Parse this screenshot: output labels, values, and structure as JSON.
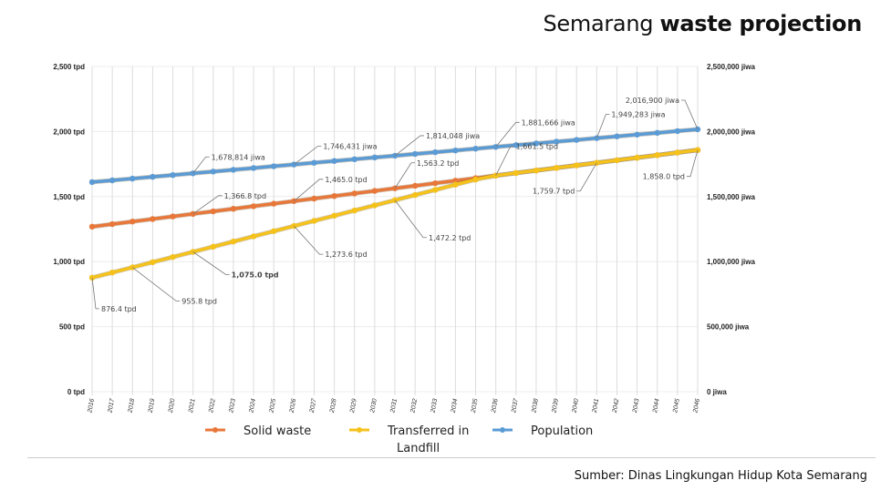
{
  "title": {
    "regular": "Semarang",
    "bold": "waste projection"
  },
  "source": "Sumber: Dinas Lingkungan Hidup Kota Semarang",
  "chart_data": {
    "type": "line",
    "title": "Semarang waste projection",
    "x": [
      2016,
      2017,
      2018,
      2019,
      2020,
      2021,
      2022,
      2023,
      2024,
      2025,
      2026,
      2027,
      2028,
      2029,
      2030,
      2031,
      2032,
      2033,
      2034,
      2035,
      2036,
      2037,
      2038,
      2039,
      2040,
      2041,
      2042,
      2043,
      2044,
      2045,
      2046
    ],
    "y_left": {
      "range": [
        0,
        2500
      ],
      "ticks": [
        "0 tpd",
        "500 tpd",
        "1,000 tpd",
        "1,500 tpd",
        "2,000 tpd",
        "2,500 tpd"
      ]
    },
    "y_right": {
      "range": [
        0,
        2500000
      ],
      "ticks": [
        "0 jiwa",
        "500,000 jiwa",
        "1,000,000 jiwa",
        "1,500,000 jiwa",
        "2,000,000 jiwa",
        "2,500,000 jiwa"
      ]
    },
    "grid": {
      "vertical": true,
      "horizontal": true
    },
    "legend_position": "bottom",
    "series": [
      {
        "name": "Solid waste",
        "axis": "left",
        "color": "#E8773A",
        "values": [
          1268.6,
          1288.2,
          1307.9,
          1327.5,
          1347.2,
          1366.8,
          1386.4,
          1406.1,
          1425.7,
          1445.4,
          1465.0,
          1484.6,
          1504.3,
          1523.9,
          1543.6,
          1563.2,
          1582.8,
          1602.5,
          1622.1,
          1641.8,
          1661.5,
          1681.1,
          1700.7,
          1720.4,
          1740.0,
          1759.7,
          1779.3,
          1798.9,
          1818.6,
          1838.3,
          1858.0
        ]
      },
      {
        "name": "Transferred in Landfill",
        "name_lines": [
          "Transferred in",
          "Landfill"
        ],
        "axis": "left",
        "color": "#F5C21B",
        "values": [
          876.4,
          916.1,
          955.8,
          995.6,
          1035.3,
          1075.0,
          1114.7,
          1154.4,
          1194.2,
          1233.9,
          1273.6,
          1313.3,
          1353.0,
          1392.8,
          1432.5,
          1472.2,
          1511.9,
          1551.6,
          1591.4,
          1631.1,
          1661.5,
          1681.1,
          1700.7,
          1720.4,
          1740.0,
          1759.7,
          1779.3,
          1798.9,
          1818.6,
          1838.3,
          1858.0
        ]
      },
      {
        "name": "Population",
        "axis": "right",
        "color": "#5B9BD5",
        "values": [
          1611197,
          1624720,
          1638244,
          1651767,
          1665291,
          1678814,
          1692338,
          1705861,
          1719384,
          1732908,
          1746431,
          1759955,
          1773478,
          1787002,
          1800525,
          1814048,
          1827572,
          1841095,
          1854619,
          1868142,
          1881666,
          1895189,
          1908712,
          1922236,
          1935759,
          1949283,
          1962806,
          1976330,
          1989853,
          2003377,
          2016900
        ]
      }
    ],
    "annotations": [
      {
        "series": 2,
        "year": 2021,
        "text": "1,678,814 jiwa"
      },
      {
        "series": 2,
        "year": 2026,
        "text": "1,746,431 jiwa"
      },
      {
        "series": 2,
        "year": 2031,
        "text": "1,814,048 jiwa"
      },
      {
        "series": 2,
        "year": 2036,
        "text": "1,881,666 jiwa"
      },
      {
        "series": 2,
        "year": 2041,
        "text": "1,949,283 jiwa"
      },
      {
        "series": 2,
        "year": 2046,
        "text": "2,016,900 jiwa"
      },
      {
        "series": 0,
        "year": 2021,
        "text": "1,366.8 tpd"
      },
      {
        "series": 0,
        "year": 2026,
        "text": "1,465.0 tpd"
      },
      {
        "series": 0,
        "year": 2031,
        "text": "1,563.2 tpd"
      },
      {
        "series": 0,
        "year": 2036,
        "text": "1,661.5 tpd"
      },
      {
        "series": 0,
        "year": 2041,
        "text": "1,759.7 tpd"
      },
      {
        "series": 0,
        "year": 2046,
        "text": "1,858.0 tpd"
      },
      {
        "series": 1,
        "year": 2016,
        "text": "876.4 tpd"
      },
      {
        "series": 1,
        "year": 2018,
        "text": "955.8 tpd"
      },
      {
        "series": 1,
        "year": 2021,
        "text": "1,075.0 tpd",
        "bold": true
      },
      {
        "series": 1,
        "year": 2026,
        "text": "1,273.6 tpd"
      },
      {
        "series": 1,
        "year": 2031,
        "text": "1,472.2 tpd"
      }
    ]
  }
}
